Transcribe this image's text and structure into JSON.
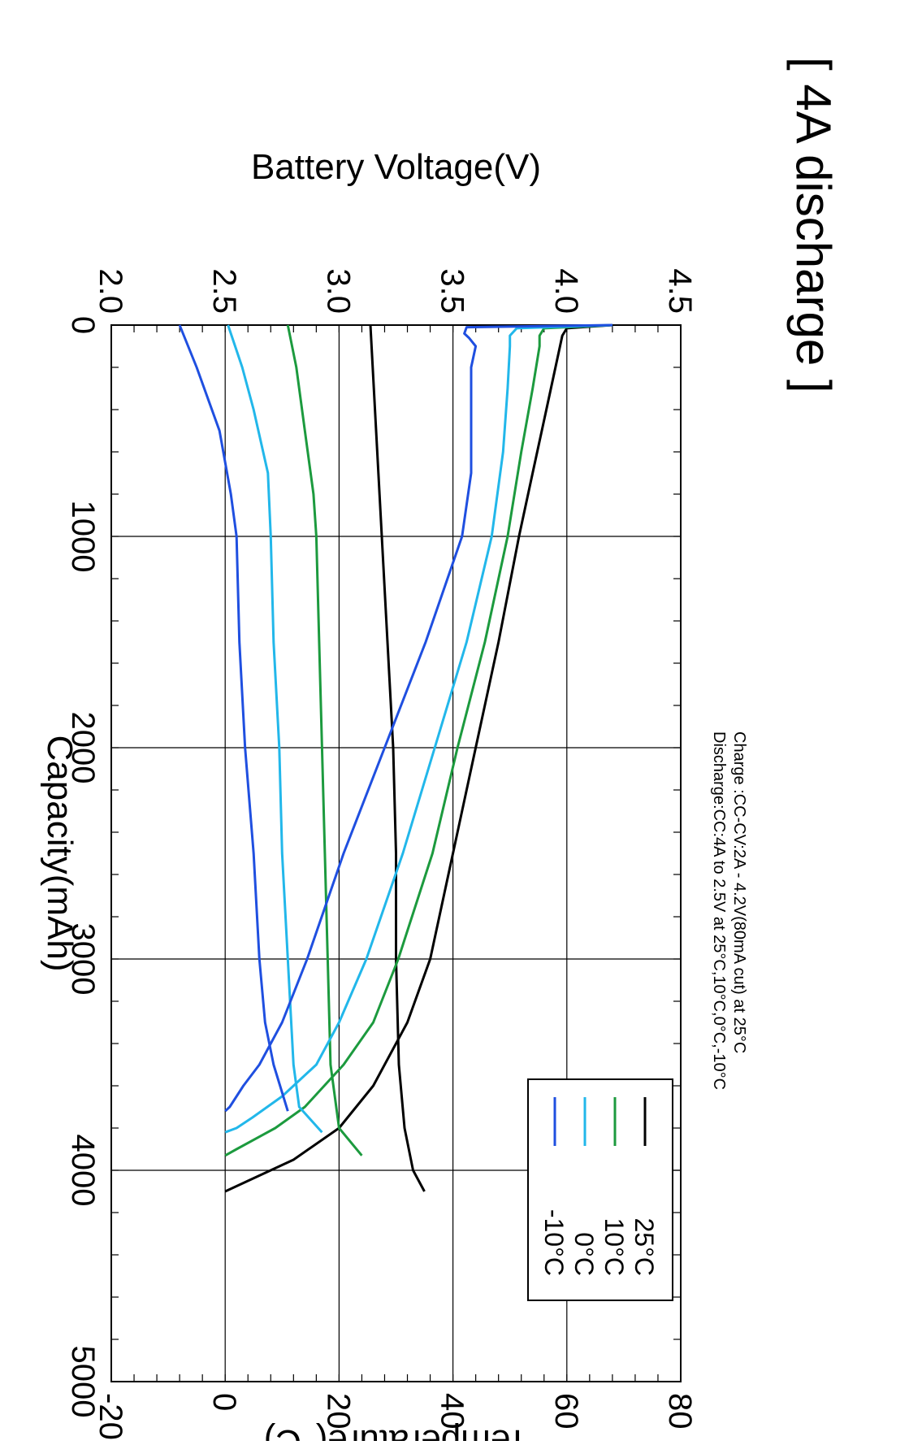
{
  "chart_data": {
    "type": "line",
    "title": "[ 4A discharge ]",
    "xlabel": "Capacity(mAh)",
    "ylabel": "Battery Voltage(V)",
    "y2label": "Temperature(°C)",
    "xlim": [
      0,
      5000
    ],
    "ylim": [
      2.0,
      4.5
    ],
    "y2lim": [
      -20,
      80
    ],
    "xticks": [
      "0",
      "1000",
      "2000",
      "3000",
      "4000",
      "5000"
    ],
    "yticks": [
      "2.0",
      "2.5",
      "3.0",
      "3.5",
      "4.0",
      "4.5"
    ],
    "y2ticks": [
      "-20",
      "0",
      "20",
      "40",
      "60",
      "80"
    ],
    "grid": true,
    "orientation": "rotated 90 degrees clockwise",
    "notes": [
      "Charge :CC-CV:2A  - 4.2V(80mA  cut) at 25°C",
      "Discharge:CC:4A  to 2.5V  at 25°C,10°C,0°C,-10°C"
    ],
    "legend": {
      "placement": "top-right"
    },
    "series": [
      {
        "name": "25°C",
        "color": "#000000",
        "voltage": {
          "x": [
            0,
            15,
            50,
            100,
            200,
            400,
            700,
            1000,
            1500,
            2000,
            2500,
            3000,
            3300,
            3600,
            3800,
            3950,
            4050,
            4100
          ],
          "y": [
            4.2,
            4.0,
            3.98,
            3.97,
            3.95,
            3.91,
            3.85,
            3.79,
            3.7,
            3.6,
            3.5,
            3.4,
            3.3,
            3.15,
            3.0,
            2.8,
            2.6,
            2.5
          ]
        },
        "temperature": {
          "x": [
            0,
            500,
            1000,
            1500,
            2000,
            2500,
            3000,
            3500,
            3800,
            4000,
            4100
          ],
          "y": [
            25.5,
            26.5,
            27.5,
            28.5,
            29.5,
            30,
            30,
            30.5,
            31.5,
            33,
            35
          ]
        }
      },
      {
        "name": "10°C",
        "color": "#1c9a3e",
        "voltage": {
          "x": [
            0,
            15,
            50,
            100,
            300,
            600,
            1000,
            1500,
            2000,
            2500,
            3000,
            3300,
            3500,
            3700,
            3800,
            3900,
            3930
          ],
          "y": [
            4.2,
            3.9,
            3.88,
            3.88,
            3.85,
            3.8,
            3.74,
            3.64,
            3.52,
            3.41,
            3.26,
            3.15,
            3.02,
            2.85,
            2.72,
            2.55,
            2.5
          ]
        },
        "temperature": {
          "x": [
            0,
            200,
            500,
            800,
            1000,
            1500,
            2000,
            2500,
            3000,
            3500,
            3800,
            3930
          ],
          "y": [
            11,
            12.5,
            14,
            15.5,
            16,
            16.5,
            17,
            17.5,
            18,
            18.5,
            20,
            24
          ]
        }
      },
      {
        "name": "0°C",
        "color": "#22b7ea",
        "voltage": {
          "x": [
            0,
            15,
            50,
            100,
            300,
            600,
            1000,
            1500,
            2000,
            2500,
            3000,
            3300,
            3500,
            3650,
            3750,
            3800,
            3820
          ],
          "y": [
            4.2,
            3.78,
            3.75,
            3.75,
            3.74,
            3.72,
            3.67,
            3.56,
            3.42,
            3.28,
            3.12,
            3.0,
            2.9,
            2.75,
            2.62,
            2.55,
            2.5
          ]
        },
        "temperature": {
          "x": [
            0,
            200,
            400,
            700,
            1000,
            1500,
            2000,
            2500,
            3000,
            3500,
            3700,
            3820
          ],
          "y": [
            0.5,
            3,
            5,
            7.5,
            8,
            8.5,
            9.5,
            10,
            11,
            12,
            13,
            17
          ]
        }
      },
      {
        "name": "-10°C",
        "color": "#1f4fe0",
        "voltage": {
          "x": [
            0,
            10,
            40,
            60,
            100,
            200,
            400,
            700,
            1000,
            1500,
            2000,
            2500,
            3000,
            3300,
            3500,
            3600,
            3700,
            3720
          ],
          "y": [
            4.2,
            3.56,
            3.55,
            3.57,
            3.6,
            3.58,
            3.58,
            3.58,
            3.54,
            3.38,
            3.2,
            3.02,
            2.86,
            2.75,
            2.65,
            2.58,
            2.52,
            2.5
          ]
        },
        "temperature": {
          "x": [
            0,
            200,
            500,
            800,
            1000,
            1500,
            2000,
            2500,
            3000,
            3300,
            3500,
            3720
          ],
          "y": [
            -8,
            -5,
            -1,
            1,
            2,
            2.5,
            3.5,
            5,
            6,
            7,
            8.5,
            11
          ]
        }
      }
    ]
  }
}
